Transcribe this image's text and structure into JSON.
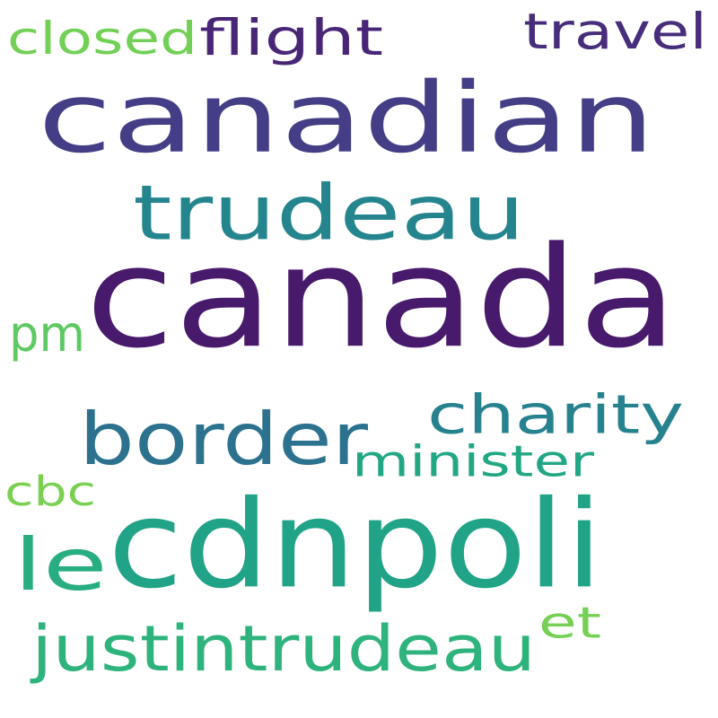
{
  "words": [
    {
      "text": "canada",
      "color": "#481a6c"
    },
    {
      "text": "canadian",
      "color": "#433e85"
    },
    {
      "text": "cdnpoli",
      "color": "#20a386"
    },
    {
      "text": "trudeau",
      "color": "#25858e"
    },
    {
      "text": "border",
      "color": "#2c728e"
    },
    {
      "text": "justintrudeau",
      "color": "#2eb37c"
    },
    {
      "text": "charity",
      "color": "#26828e"
    },
    {
      "text": "le",
      "color": "#27ad81"
    },
    {
      "text": "flight",
      "color": "#482576"
    },
    {
      "text": "travel",
      "color": "#472d7b"
    },
    {
      "text": "closed",
      "color": "#73d056"
    },
    {
      "text": "pm",
      "color": "#5ec962"
    },
    {
      "text": "minister",
      "color": "#22a785"
    },
    {
      "text": "cbc",
      "color": "#7ad151"
    },
    {
      "text": "et",
      "color": "#75d054"
    }
  ]
}
